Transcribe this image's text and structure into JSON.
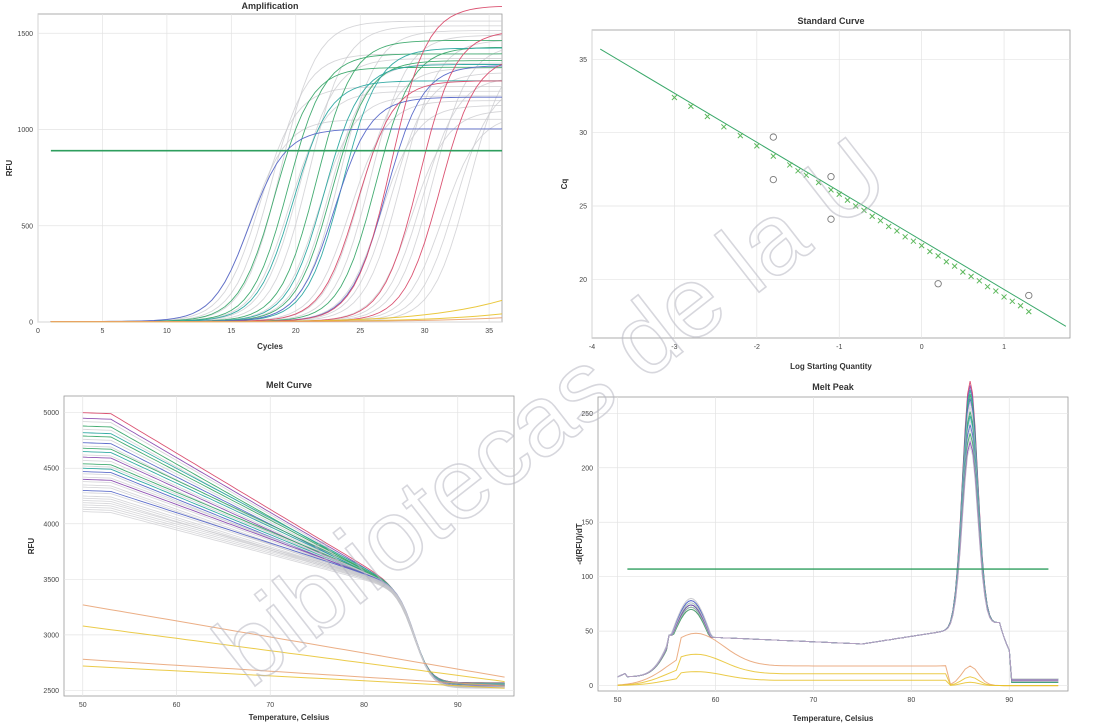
{
  "colors": {
    "threshold": "#2e9e5e",
    "red": "#d94a6a",
    "green": "#3aa86a",
    "teal": "#2aa7a0",
    "blue": "#5566c8",
    "purple": "#8a4bb0",
    "gray": "#c8c8cc",
    "yellow": "#e8c22a",
    "orange": "#e8a070",
    "std_marker": "#5cb85c",
    "std_line": "#3aa86a",
    "watermark": "#b7b7c2"
  },
  "watermark": {
    "text": "bibliotecas de la U"
  },
  "chart_data": [
    {
      "id": "amplification",
      "type": "line",
      "title": "Amplification",
      "xlabel": "Cycles",
      "ylabel": "RFU",
      "xlim": [
        0,
        36
      ],
      "ylim": [
        0,
        1600
      ],
      "xticks": [
        0,
        5,
        10,
        15,
        20,
        25,
        30,
        35
      ],
      "yticks": [
        0,
        500,
        1000,
        1500
      ],
      "tick_labels_y": [
        "0",
        "500",
        "1000",
        "1500"
      ],
      "tick_labels_x": [
        "0",
        "5",
        "10",
        "15",
        "20",
        "25",
        "30",
        "35"
      ],
      "threshold": 890,
      "grid": true,
      "series_groups": [
        {
          "color": "gray",
          "midpoints": [
            16.5,
            17.2,
            18.0,
            18.8,
            19.5,
            20.2,
            21.0,
            21.8,
            22.6,
            23.4,
            24.2,
            25.0,
            25.8,
            26.6,
            27.4,
            28.2,
            29.0,
            29.8,
            30.6,
            31.4,
            32.4,
            33.4
          ],
          "plateau_min": 1050,
          "plateau_max": 1560
        },
        {
          "color": "green",
          "midpoints": [
            18.4,
            19.4,
            21.6,
            22.8,
            26.2
          ],
          "plateau_min": 1320,
          "plateau_max": 1460
        },
        {
          "color": "teal",
          "midpoints": [
            19.8,
            22.2,
            23.6
          ],
          "plateau_min": 1250,
          "plateau_max": 1420
        },
        {
          "color": "blue",
          "midpoints": [
            16.4,
            23.0,
            27.0
          ],
          "plateau_min": 1000,
          "plateau_max": 1330
        },
        {
          "color": "red",
          "midpoints": [
            24.8,
            27.4,
            29.6,
            31.2
          ],
          "plateau_min": 1250,
          "plateau_max": 1640
        }
      ],
      "baseline_series": [
        {
          "color": "yellow",
          "end_value": 110
        },
        {
          "color": "yellow",
          "end_value": 40
        },
        {
          "color": "orange",
          "end_value": 20
        }
      ]
    },
    {
      "id": "standard-curve",
      "type": "scatter",
      "title": "Standard Curve",
      "xlabel": "Log Starting Quantity",
      "ylabel": "Cq",
      "xlim": [
        -4,
        1.8
      ],
      "ylim": [
        16,
        37
      ],
      "xticks": [
        -4,
        -3,
        -2,
        -1,
        0,
        1
      ],
      "yticks": [
        20,
        25,
        30,
        35
      ],
      "tick_labels_x": [
        "-4",
        "-3",
        "-2",
        "-1",
        "0",
        "1"
      ],
      "tick_labels_y": [
        "20",
        "25",
        "30",
        "35"
      ],
      "grid": true,
      "fit_line": {
        "x": [
          -3.9,
          1.75
        ],
        "y": [
          35.7,
          16.8
        ]
      },
      "standards_x": [
        -3.0,
        -2.8,
        -2.6,
        -2.4,
        -2.2,
        -2.0,
        -1.8,
        -1.6,
        -1.5,
        -1.4,
        -1.25,
        -1.1,
        -1.0,
        -0.9,
        -0.8,
        -0.7,
        -0.6,
        -0.5,
        -0.4,
        -0.3,
        -0.2,
        -0.1,
        0.0,
        0.1,
        0.2,
        0.3,
        0.4,
        0.5,
        0.6,
        0.7,
        0.8,
        0.9,
        1.0,
        1.1,
        1.2,
        1.3
      ],
      "standards_y": [
        32.4,
        31.8,
        31.1,
        30.4,
        29.8,
        29.1,
        28.4,
        27.8,
        27.4,
        27.1,
        26.6,
        26.1,
        25.8,
        25.4,
        25.0,
        24.7,
        24.3,
        24.0,
        23.6,
        23.3,
        22.9,
        22.6,
        22.3,
        21.9,
        21.6,
        21.2,
        20.9,
        20.5,
        20.2,
        19.9,
        19.5,
        19.2,
        18.8,
        18.5,
        18.2,
        17.8
      ],
      "unknowns_x": [
        -1.8,
        -1.8,
        -1.1,
        -1.1,
        0.2,
        1.3
      ],
      "unknowns_y": [
        29.7,
        26.8,
        27.0,
        24.1,
        19.7,
        18.9
      ]
    },
    {
      "id": "melt-curve",
      "type": "line",
      "title": "Melt Curve",
      "xlabel": "Temperature, Celsius",
      "ylabel": "RFU",
      "xlim": [
        48,
        96
      ],
      "ylim": [
        2450,
        5150
      ],
      "xticks": [
        50,
        60,
        70,
        80,
        90
      ],
      "yticks": [
        2500,
        3000,
        3500,
        4000,
        4500,
        5000
      ],
      "tick_labels_x": [
        "50",
        "60",
        "70",
        "80",
        "90"
      ],
      "tick_labels_y": [
        "2500",
        "3000",
        "3500",
        "4000",
        "4500",
        "5000"
      ],
      "grid": true,
      "start_levels": [
        5000,
        4950,
        4920,
        4880,
        4850,
        4820,
        4790,
        4760,
        4730,
        4700,
        4680,
        4650,
        4620,
        4600,
        4570,
        4540,
        4520,
        4500,
        4470,
        4450,
        4420,
        4400,
        4380,
        4350,
        4330,
        4300,
        4280,
        4250,
        4230,
        4210,
        4190,
        4170,
        4150,
        4130,
        4110
      ],
      "level_colors": [
        "red",
        "purple",
        "gray",
        "green",
        "gray",
        "teal",
        "green",
        "gray",
        "blue",
        "gray",
        "green",
        "teal",
        "gray",
        "purple",
        "gray",
        "green",
        "gray",
        "teal",
        "blue",
        "gray",
        "gray",
        "purple",
        "gray",
        "gray",
        "gray",
        "blue",
        "gray",
        "gray",
        "gray",
        "gray",
        "gray",
        "gray",
        "gray",
        "gray",
        "gray"
      ],
      "plateau_levels": [
        2570,
        2520
      ],
      "low_series": [
        {
          "color": "orange",
          "start": 3270,
          "end": 2620
        },
        {
          "color": "yellow",
          "start": 3080,
          "end": 2580
        },
        {
          "color": "orange",
          "start": 2780,
          "end": 2540
        },
        {
          "color": "yellow",
          "start": 2720,
          "end": 2520
        }
      ]
    },
    {
      "id": "melt-peak",
      "type": "line",
      "title": "Melt Peak",
      "xlabel": "Temperature, Celsius",
      "ylabel": "-d(RFU)/dT",
      "xlim": [
        48,
        96
      ],
      "ylim": [
        -5,
        265
      ],
      "xticks": [
        50,
        60,
        70,
        80,
        90
      ],
      "yticks": [
        0,
        50,
        100,
        150,
        200,
        250
      ],
      "tick_labels_x": [
        "50",
        "60",
        "70",
        "80",
        "90"
      ],
      "tick_labels_y": [
        "0",
        "50",
        "100",
        "150",
        "200",
        "250"
      ],
      "threshold": 107,
      "grid": true,
      "peak_temp": 86,
      "peak_heights": [
        226,
        222,
        218,
        214,
        210,
        206,
        202,
        198,
        194,
        190,
        186,
        182,
        178,
        174,
        170,
        166
      ],
      "peak_colors": [
        "red",
        "purple",
        "teal",
        "green",
        "blue",
        "gray",
        "gray",
        "green",
        "teal",
        "gray",
        "blue",
        "gray",
        "green",
        "gray",
        "purple",
        "gray"
      ],
      "low_series": [
        {
          "color": "orange",
          "bump": 30,
          "late": 18
        },
        {
          "color": "yellow",
          "bump": 18,
          "late": 8
        },
        {
          "color": "yellow",
          "bump": 8,
          "late": 3
        }
      ]
    }
  ]
}
